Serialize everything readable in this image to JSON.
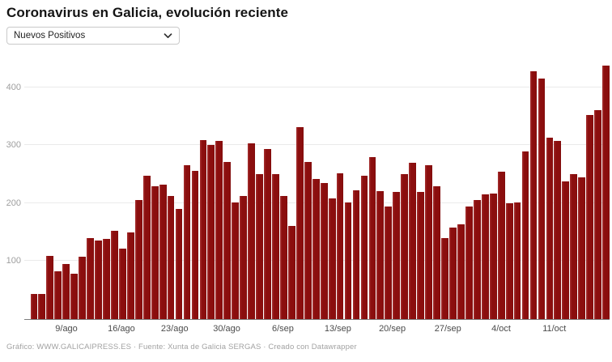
{
  "header": {
    "title": "Coronavirus en Galicia, evolución reciente"
  },
  "controls": {
    "metric_dropdown": {
      "selected": "Nuevos Positivos"
    }
  },
  "chart_data": {
    "type": "bar",
    "title": "Coronavirus en Galicia, evolución reciente",
    "series_label": "Nuevos Positivos",
    "values": [
      43,
      43,
      109,
      82,
      95,
      78,
      108,
      140,
      136,
      138,
      152,
      122,
      150,
      205,
      247,
      230,
      232,
      213,
      190,
      266,
      256,
      309,
      300,
      307,
      271,
      201,
      213,
      304,
      251,
      294,
      251,
      213,
      161,
      332,
      272,
      242,
      235,
      208,
      252,
      201,
      223,
      247,
      280,
      221,
      194,
      220,
      250,
      270,
      220,
      266,
      230,
      140,
      158,
      164,
      194,
      206,
      216,
      217,
      254,
      200,
      201,
      289,
      428,
      416,
      313,
      307,
      238,
      251,
      245,
      353,
      361,
      438
    ],
    "x_tick_labels": [
      "9/ago",
      "16/ago",
      "23/ago",
      "30/ago",
      "6/sep",
      "13/sep",
      "20/sep",
      "27/sep",
      "4/oct",
      "11/oct"
    ],
    "x_tick_positions_pct": [
      6.3,
      15.8,
      25.0,
      34.0,
      43.7,
      53.2,
      62.6,
      72.2,
      81.4,
      90.6
    ],
    "y_ticks": [
      100,
      200,
      300,
      400
    ],
    "ylim": [
      0,
      467
    ],
    "xlabel": "",
    "ylabel": "",
    "grid": true,
    "legend_position": "none",
    "bar_color": "#8b0e0e",
    "gridline_color": "#eaeaea",
    "axis_line_color": "#7d7d7d"
  },
  "footer": {
    "credit": "Gráfico: WWW.GALICAIPRESS.ES · Fuente: Xunta de Galicia SERGAS · Creado con Datawrapper"
  }
}
